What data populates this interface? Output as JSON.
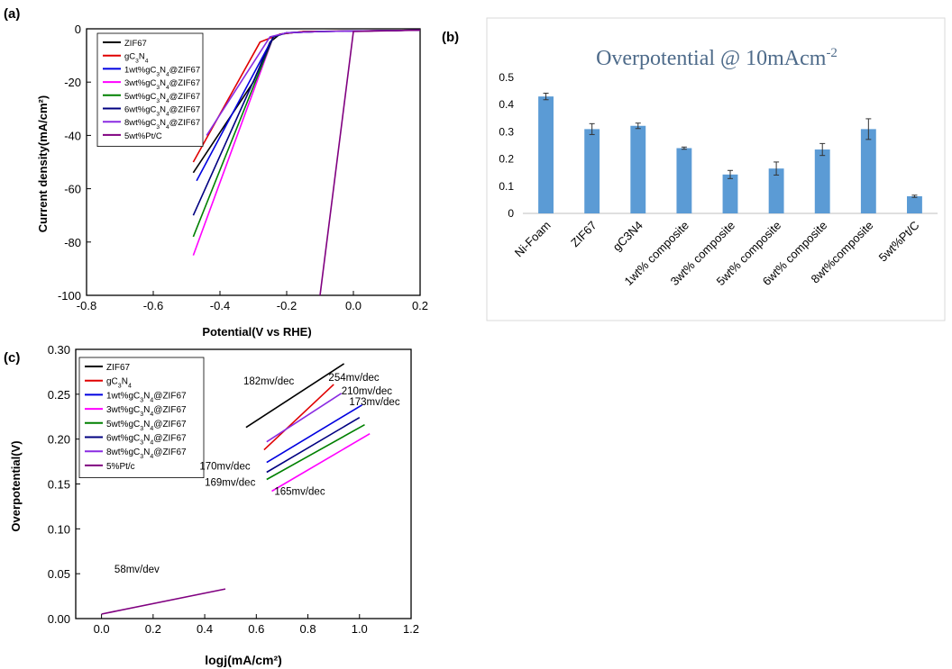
{
  "panels": {
    "a": {
      "label": "(a)",
      "chart_data": {
        "type": "line",
        "title": "",
        "xlabel": "Potential(V vs RHE)",
        "ylabel": "Current density(mA/cm²)",
        "xlim": [
          -0.8,
          0.2
        ],
        "ylim": [
          -100,
          0
        ],
        "xticks": [
          "-0.8",
          "-0.6",
          "-0.4",
          "-0.2",
          "0.0",
          "0.2"
        ],
        "yticks": [
          "0",
          "-20",
          "-40",
          "-60",
          "-80",
          "-100"
        ],
        "legend_position": "top-left",
        "series": [
          {
            "name": "ZIF67",
            "color": "#000000",
            "points": [
              [
                -0.48,
                -54
              ],
              [
                -0.3,
                -20
              ],
              [
                -0.25,
                -5
              ],
              [
                -0.22,
                -2
              ],
              [
                -0.15,
                -1
              ],
              [
                0.0,
                -0.8
              ],
              [
                0.2,
                -0.5
              ]
            ]
          },
          {
            "name": "gC₃N₄",
            "color": "#e00000",
            "points": [
              [
                -0.48,
                -50
              ],
              [
                -0.28,
                -5
              ],
              [
                -0.22,
                -2
              ],
              [
                -0.15,
                -1
              ],
              [
                0.0,
                -0.8
              ],
              [
                0.2,
                -0.5
              ]
            ]
          },
          {
            "name": "1wt%gC₃N₄@ZIF67",
            "color": "#0000e0",
            "points": [
              [
                -0.47,
                -57
              ],
              [
                -0.24,
                -3
              ],
              [
                -0.2,
                -1.5
              ],
              [
                -0.1,
                -1
              ],
              [
                0.2,
                -0.5
              ]
            ]
          },
          {
            "name": "3wt%gC₃N₄@ZIF67",
            "color": "#ff00ff",
            "points": [
              [
                -0.48,
                -85
              ],
              [
                -0.24,
                -3
              ],
              [
                -0.2,
                -1.5
              ],
              [
                -0.1,
                -1
              ],
              [
                0.2,
                -0.5
              ]
            ]
          },
          {
            "name": "5wt%gC₃N₄@ZIF67",
            "color": "#008000",
            "points": [
              [
                -0.48,
                -78
              ],
              [
                -0.24,
                -3
              ],
              [
                -0.2,
                -1.5
              ],
              [
                -0.1,
                -1
              ],
              [
                0.2,
                -0.5
              ]
            ]
          },
          {
            "name": "6wt%gC₃N₄@ZIF67",
            "color": "#000080",
            "points": [
              [
                -0.48,
                -70
              ],
              [
                -0.24,
                -3
              ],
              [
                -0.2,
                -1.5
              ],
              [
                -0.1,
                -1
              ],
              [
                0.2,
                -0.5
              ]
            ]
          },
          {
            "name": "8wt%gC₃N₄@ZIF67",
            "color": "#8a2be2",
            "points": [
              [
                -0.44,
                -40
              ],
              [
                -0.25,
                -3
              ],
              [
                -0.2,
                -1.5
              ],
              [
                -0.1,
                -1
              ],
              [
                0.2,
                -0.5
              ]
            ]
          },
          {
            "name": "5wt%Pt/C",
            "color": "#800080",
            "points": [
              [
                -0.1,
                -100
              ],
              [
                0.0,
                -1
              ],
              [
                0.2,
                -0.5
              ]
            ]
          }
        ]
      }
    },
    "b": {
      "label": "(b)",
      "chart_data": {
        "type": "bar",
        "title": "Overpotential @ 10mAcm",
        "title_sup": "-2",
        "xlabel": "",
        "ylabel": "",
        "ylim": [
          0,
          0.5
        ],
        "yticks": [
          "0",
          "0.1",
          "0.2",
          "0.3",
          "0.4",
          "0.5"
        ],
        "bar_color": "#5b9bd5",
        "categories": [
          "Ni-Foam",
          "ZIF67",
          "gC3N4",
          "1wt% composite",
          "3wt% composite",
          "5wt% composite",
          "6wt% composite",
          "8wt%composite",
          "5wt%Pt/C"
        ],
        "values": [
          0.43,
          0.31,
          0.322,
          0.24,
          0.143,
          0.165,
          0.235,
          0.31,
          0.063
        ],
        "errors": [
          0.012,
          0.02,
          0.01,
          0.004,
          0.015,
          0.024,
          0.022,
          0.038,
          0.004
        ]
      }
    },
    "c": {
      "label": "(c)",
      "chart_data": {
        "type": "line",
        "title": "",
        "xlabel": "logj(mA/cm²)",
        "ylabel": "Overpotential(V)",
        "xlim": [
          -0.1,
          1.2
        ],
        "ylim": [
          0,
          0.3
        ],
        "xticks": [
          "0.0",
          "0.2",
          "0.4",
          "0.6",
          "0.8",
          "1.0",
          "1.2"
        ],
        "yticks": [
          "0.00",
          "0.05",
          "0.10",
          "0.15",
          "0.20",
          "0.25",
          "0.30"
        ],
        "legend_position": "top-left",
        "series": [
          {
            "name": "ZIF67",
            "color": "#000000",
            "points": [
              [
                0.56,
                0.213
              ],
              [
                0.94,
                0.284
              ]
            ]
          },
          {
            "name": "gC₃N₄",
            "color": "#e00000",
            "points": [
              [
                0.63,
                0.188
              ],
              [
                0.9,
                0.261
              ]
            ]
          },
          {
            "name": "1wt%gC₃N₄@ZIF67",
            "color": "#0000e0",
            "points": [
              [
                0.64,
                0.174
              ],
              [
                1.01,
                0.238
              ]
            ]
          },
          {
            "name": "3wt%gC₃N₄@ZIF67",
            "color": "#ff00ff",
            "points": [
              [
                0.66,
                0.142
              ],
              [
                1.04,
                0.206
              ]
            ]
          },
          {
            "name": "5wt%gC₃N₄@ZIF67",
            "color": "#008000",
            "points": [
              [
                0.64,
                0.155
              ],
              [
                1.02,
                0.216
              ]
            ]
          },
          {
            "name": "6wt%gC₃N₄@ZIF67",
            "color": "#000080",
            "points": [
              [
                0.64,
                0.163
              ],
              [
                1.0,
                0.224
              ]
            ]
          },
          {
            "name": "8wt%gC₃N₄@ZIF67",
            "color": "#8a2be2",
            "points": [
              [
                0.64,
                0.197
              ],
              [
                0.93,
                0.251
              ]
            ]
          },
          {
            "name": "5%Pt/c",
            "color": "#800080",
            "points": [
              [
                0.0,
                0.005
              ],
              [
                0.48,
                0.033
              ]
            ]
          }
        ],
        "annotations": [
          {
            "text": "182mv/dec",
            "x": 0.55,
            "y": 0.261
          },
          {
            "text": "254mv/dec",
            "x": 0.88,
            "y": 0.265
          },
          {
            "text": "210mv/dec",
            "x": 0.93,
            "y": 0.25
          },
          {
            "text": "173mv/dec",
            "x": 0.96,
            "y": 0.238
          },
          {
            "text": "170mv/dec",
            "x": 0.38,
            "y": 0.166
          },
          {
            "text": "169mv/dec",
            "x": 0.4,
            "y": 0.148
          },
          {
            "text": "165mv/dec",
            "x": 0.67,
            "y": 0.138
          },
          {
            "text": "58mv/dev",
            "x": 0.05,
            "y": 0.051
          }
        ]
      }
    }
  }
}
